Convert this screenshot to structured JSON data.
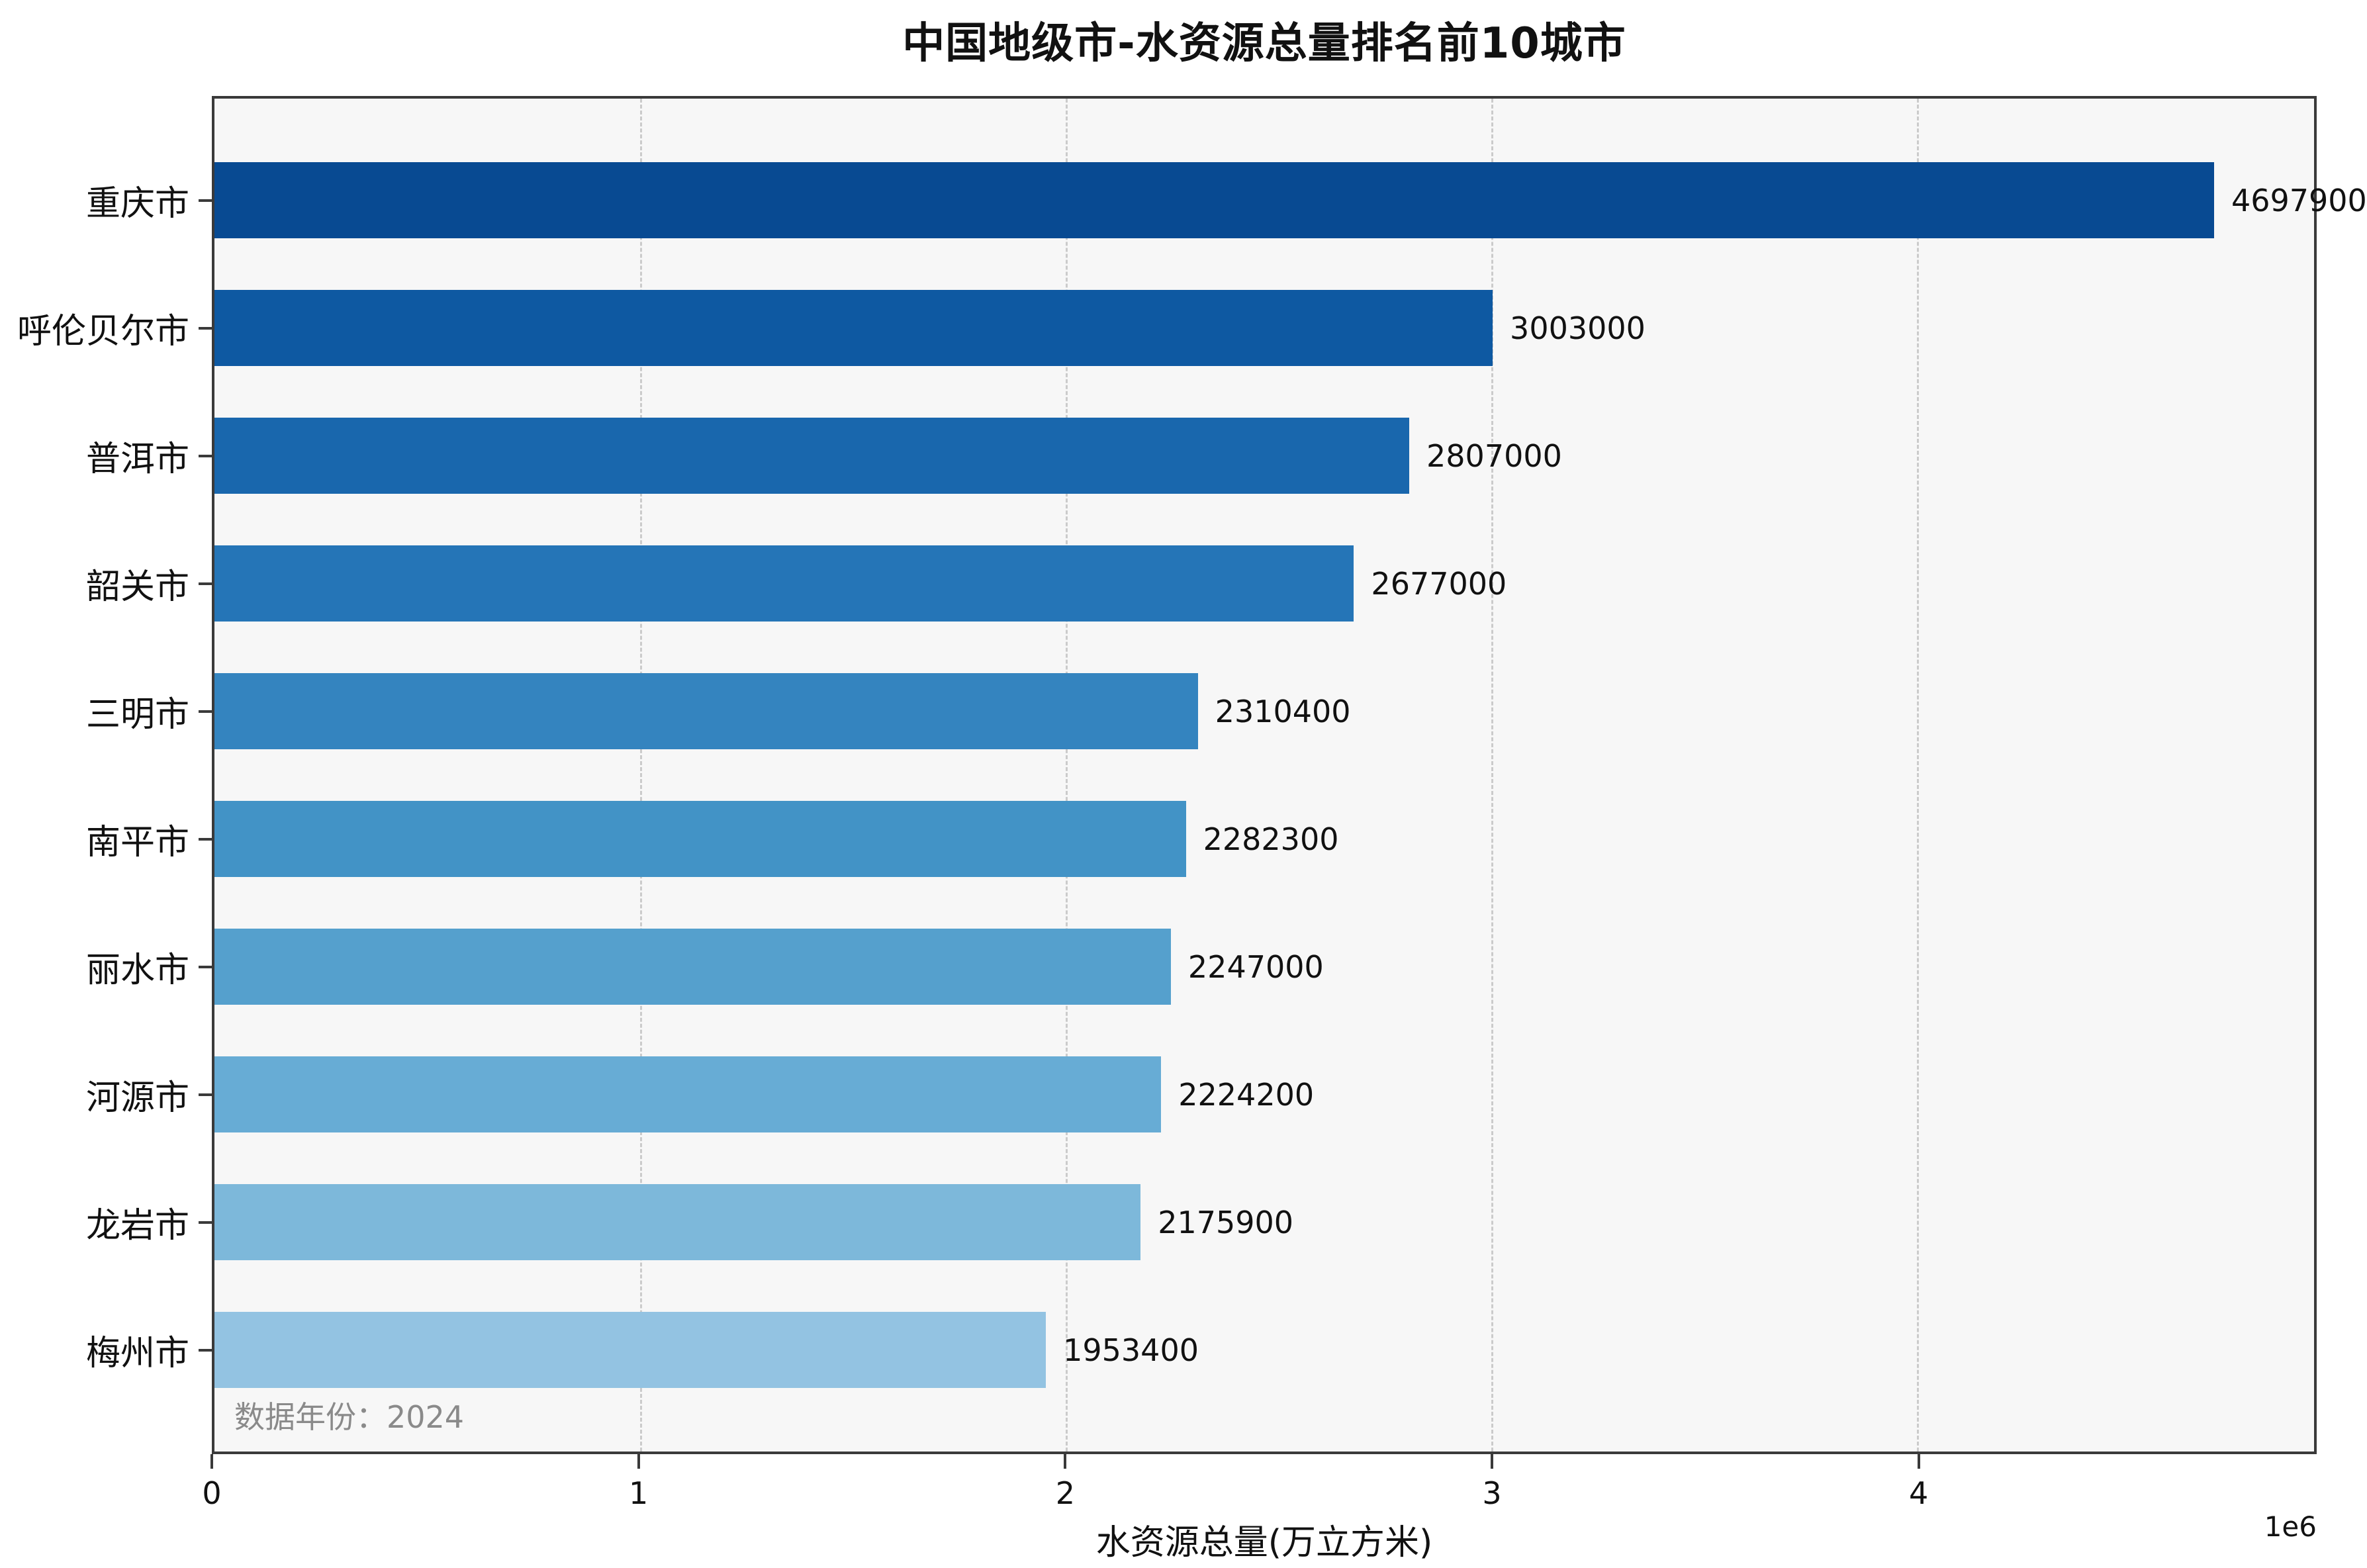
{
  "title": "中国地级市-水资源总量排名前10城市",
  "annotation": {
    "data_year": "数据年份：2024"
  },
  "chart_data": {
    "type": "bar",
    "orientation": "horizontal",
    "title": "中国地级市-水资源总量排名前10城市",
    "xlabel": "水资源总量(万立方米)",
    "ylabel": "",
    "categories": [
      "重庆市",
      "呼伦贝尔市",
      "普洱市",
      "韶关市",
      "三明市",
      "南平市",
      "丽水市",
      "河源市",
      "龙岩市",
      "梅州市"
    ],
    "values": [
      4697900,
      3003000,
      2807000,
      2677000,
      2310400,
      2282300,
      2247000,
      2224200,
      2175900,
      1953400
    ],
    "value_labels": [
      "4697900",
      "3003000",
      "2807000",
      "2677000",
      "2310400",
      "2282300",
      "2247000",
      "2224200",
      "2175900",
      "1953400"
    ],
    "bar_colors": [
      "#084a92",
      "#0e59a2",
      "#1967ad",
      "#2575b7",
      "#3484bf",
      "#4293c6",
      "#55a0cd",
      "#67acd5",
      "#7db8da",
      "#93c3e2"
    ],
    "xlim": [
      0,
      4932795
    ],
    "xticks": [
      0,
      1000000,
      2000000,
      3000000,
      4000000
    ],
    "xtick_labels": [
      "0",
      "1",
      "2",
      "3",
      "4"
    ],
    "offset_label": "1e6",
    "grid": "vertical-dashed",
    "legend": "none",
    "plot_background": "#f7f7f7",
    "grid_color": "#cbcbcb",
    "spine_color": "#3a3a3a",
    "annotation_color": "#8a8a8a"
  }
}
